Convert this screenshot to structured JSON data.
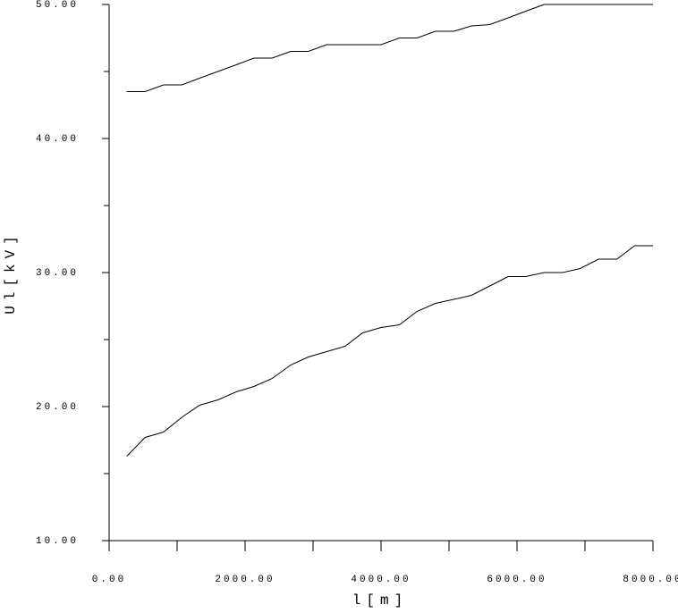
{
  "chart_data": {
    "type": "line",
    "x_label": "l[m]",
    "y_label": "Ul[kV]",
    "x": [
      260,
      530,
      800,
      1070,
      1330,
      1600,
      1870,
      2130,
      2400,
      2670,
      2930,
      3200,
      3470,
      3730,
      4000,
      4270,
      4530,
      4800,
      5070,
      5330,
      5600,
      5870,
      6130,
      6400,
      6670,
      6930,
      7200,
      7470,
      7730,
      8000
    ],
    "series": [
      {
        "color": "#000000",
        "values": [
          43.5,
          43.5,
          44,
          44,
          44.5,
          45,
          45.5,
          46,
          46,
          46.5,
          46.5,
          47,
          47,
          47,
          47,
          47.5,
          47.5,
          48,
          48,
          48.4,
          48.5,
          49,
          49.5,
          50,
          50,
          50,
          50,
          50,
          50,
          50
        ]
      },
      {
        "color": "#000000",
        "values": [
          16.3,
          17.7,
          18.1,
          19.2,
          20.1,
          20.5,
          21.1,
          21.5,
          22.1,
          23.1,
          23.7,
          24.1,
          24.5,
          25.5,
          25.9,
          26.1,
          27.1,
          27.7,
          28.0,
          28.3,
          29.0,
          29.7,
          29.7,
          30.0,
          30.0,
          30.3,
          31.0,
          31.0,
          32.0,
          32.0
        ]
      }
    ],
    "xlim": [
      0,
      8000
    ],
    "ylim": [
      10,
      50
    ],
    "xticks": [
      {
        "value": 0,
        "label": "0.00"
      },
      {
        "value": 2000,
        "label": "2000.00"
      },
      {
        "value": 4000,
        "label": "4000.00"
      },
      {
        "value": 6000,
        "label": "6000.00"
      },
      {
        "value": 8000,
        "label": "8000.00"
      }
    ],
    "xminor_ticks": [
      1000,
      3000,
      5000,
      7000
    ],
    "yticks": [
      {
        "value": 10,
        "label": "10.00"
      },
      {
        "value": 20,
        "label": "20.00"
      },
      {
        "value": 30,
        "label": "30.00"
      },
      {
        "value": 40,
        "label": "40.00"
      },
      {
        "value": 50,
        "label": "50.00"
      }
    ],
    "yminor_ticks": [
      15,
      25,
      35,
      45
    ],
    "grid": false
  }
}
